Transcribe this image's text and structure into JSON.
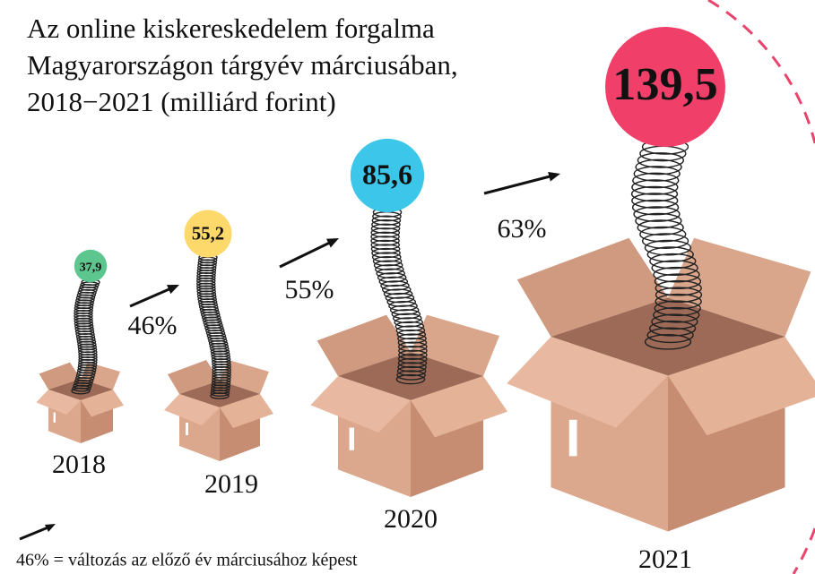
{
  "chart_data": {
    "type": "bubble-boxes",
    "title": [
      "Az online kiskereskedelem forgalma",
      "Magyarországon tárgyév márciusában,",
      "2018−2021 (milliárd forint)"
    ],
    "categories": [
      "2018",
      "2019",
      "2020",
      "2021"
    ],
    "values": [
      37.9,
      55.2,
      85.6,
      139.5
    ],
    "value_labels": [
      "37,9",
      "55,2",
      "85,6",
      "139,5"
    ],
    "colors": [
      "#5cc68e",
      "#fcd96a",
      "#3cc6ea",
      "#f0406a"
    ],
    "changes": [
      46,
      55,
      63
    ],
    "change_labels": [
      "46%",
      "55%",
      "63%"
    ],
    "legend_text": "46% = változás az előző év márciusához képest"
  }
}
